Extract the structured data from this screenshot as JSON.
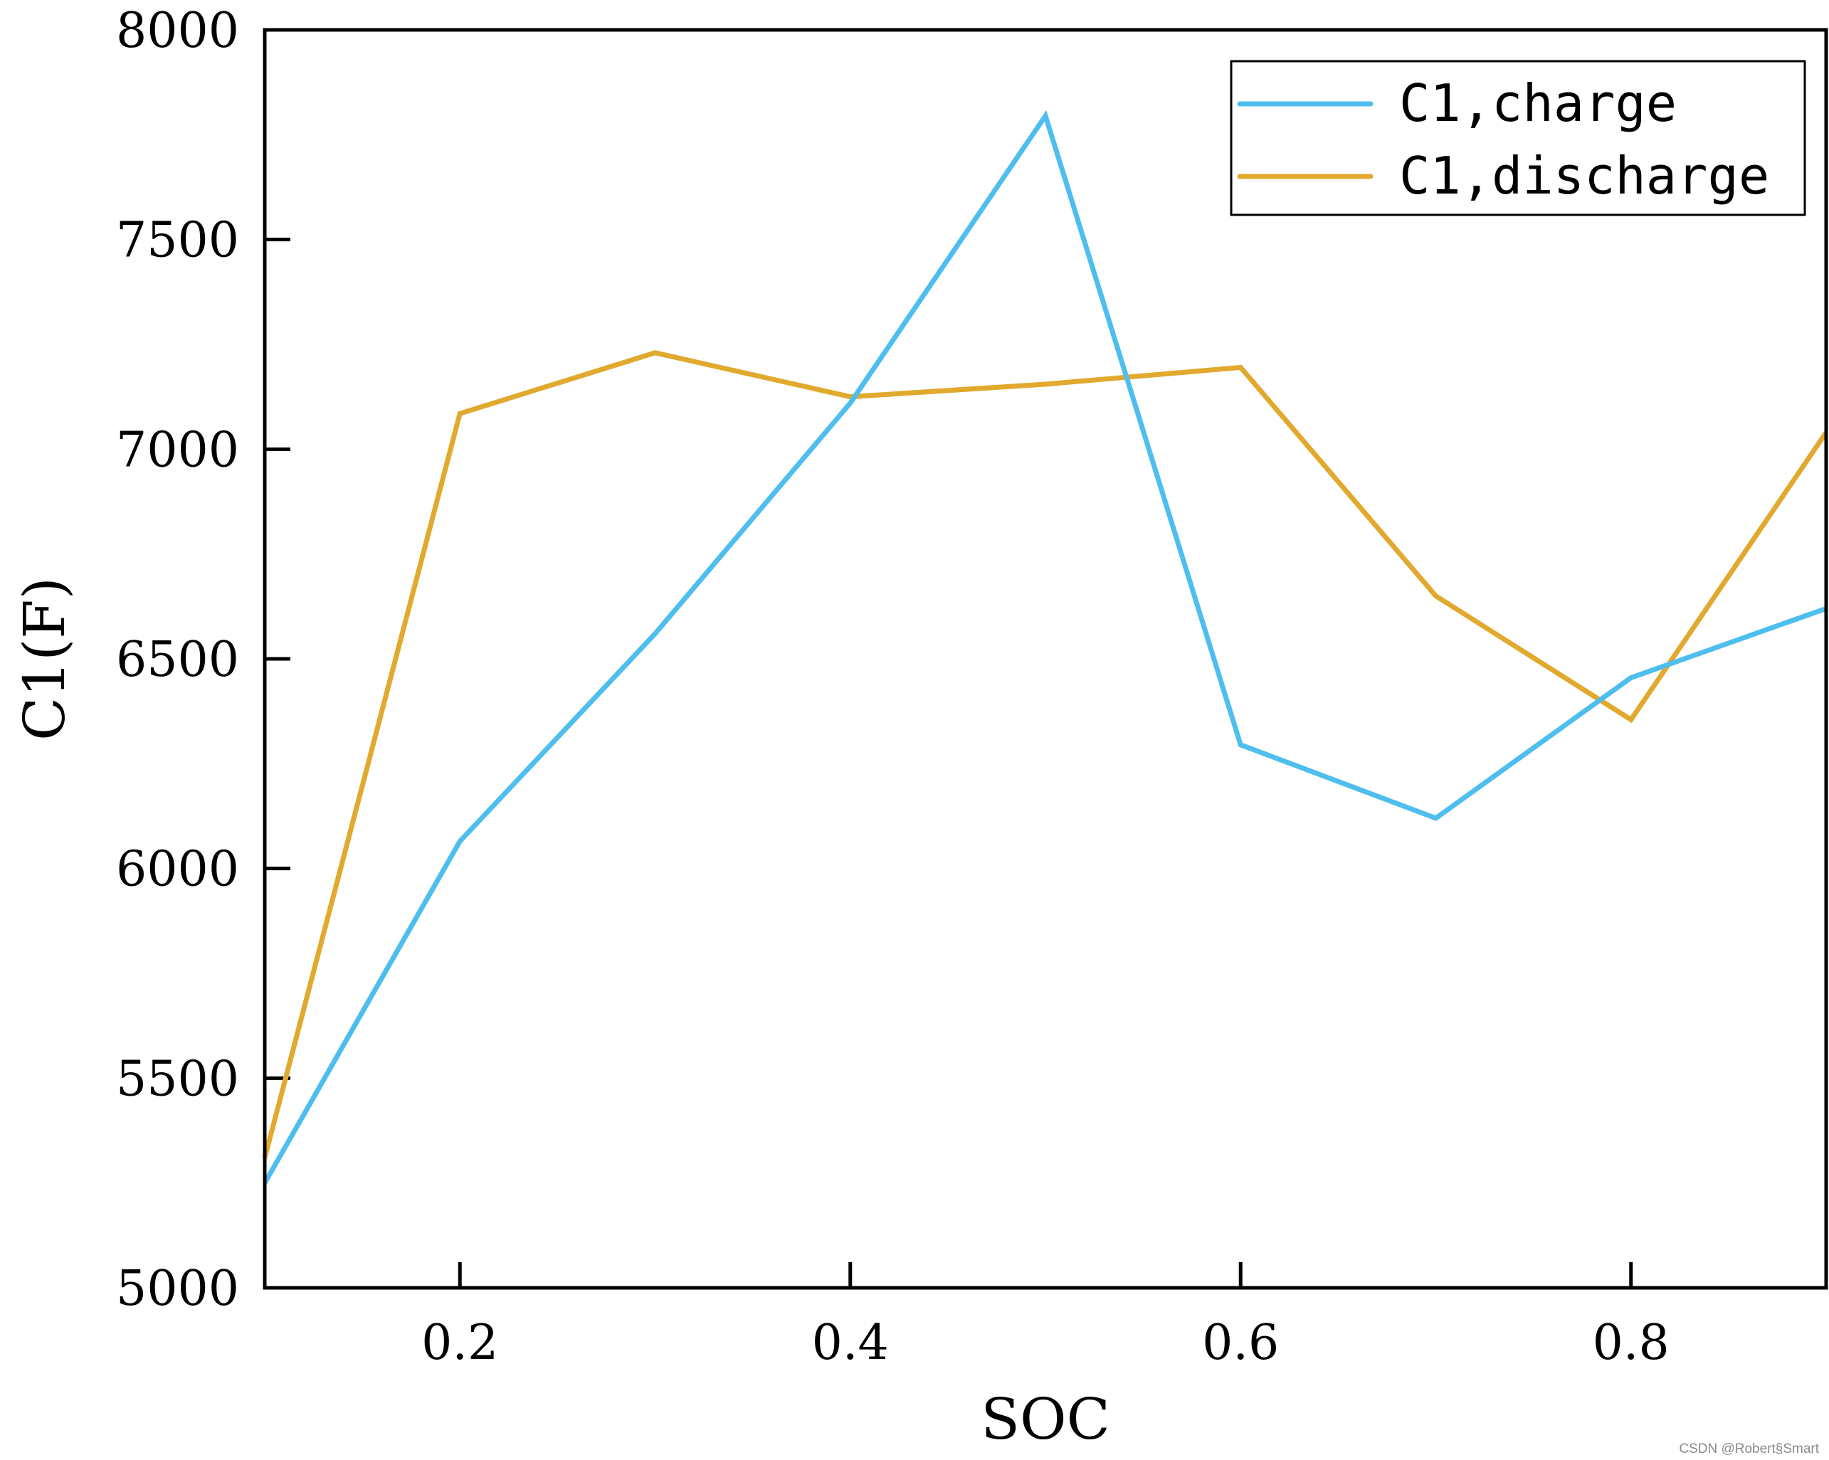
{
  "chart_data": {
    "type": "line",
    "title": "",
    "xlabel": "SOC",
    "ylabel": "C1(F)",
    "xlim": [
      0.1,
      0.9
    ],
    "ylim": [
      5000,
      8000
    ],
    "xticks": [
      0.2,
      0.4,
      0.6,
      0.8
    ],
    "xtick_labels": [
      "0.2",
      "0.4",
      "0.6",
      "0.8"
    ],
    "yticks": [
      5000,
      5500,
      6000,
      6500,
      7000,
      7500,
      8000
    ],
    "ytick_labels": [
      "5000",
      "5500",
      "6000",
      "6500",
      "7000",
      "7500",
      "8000"
    ],
    "grid": false,
    "legend_position": "top-right",
    "x": [
      0.1,
      0.2,
      0.3,
      0.4,
      0.5,
      0.6,
      0.7,
      0.8,
      0.9
    ],
    "series": [
      {
        "name": "C1,charge",
        "color": "#4DBEEE",
        "values": [
          5250,
          6065,
          6560,
          7110,
          7795,
          6295,
          6120,
          6455,
          6620
        ]
      },
      {
        "name": "C1,discharge",
        "color": "#E1A92E",
        "values": [
          5310,
          7085,
          7230,
          7125,
          7155,
          7195,
          6650,
          6355,
          7040
        ]
      }
    ]
  },
  "watermark": "CSDN @Robert§Smart"
}
